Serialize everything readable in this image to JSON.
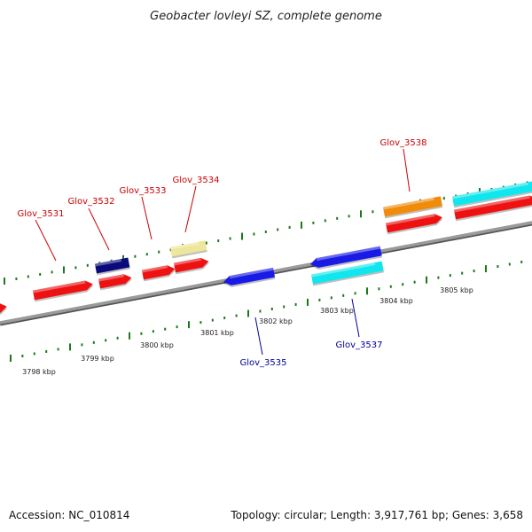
{
  "title": "Geobacter lovleyi SZ, complete genome",
  "footer": {
    "accession": "Accession: NC_010814",
    "summary": "Topology: circular; Length: 3,917,761 bp; Genes: 3,658"
  },
  "scale_labels": [
    "3798 kbp",
    "3799 kbp",
    "3800 kbp",
    "3801 kbp",
    "3802 kbp",
    "3803 kbp",
    "3804 kbp",
    "3805 kbp"
  ],
  "gene_labels": [
    {
      "id": "glov-3531",
      "text": "Glov_3531",
      "color": "#cc0000"
    },
    {
      "id": "glov-3532",
      "text": "Glov_3532",
      "color": "#cc0000"
    },
    {
      "id": "glov-3533",
      "text": "Glov_3533",
      "color": "#cc0000"
    },
    {
      "id": "glov-3534",
      "text": "Glov_3534",
      "color": "#cc0000"
    },
    {
      "id": "glov-3538",
      "text": "Glov_3538",
      "color": "#cc0000"
    },
    {
      "id": "glov-3535",
      "text": "Glov_3535",
      "color": "#000099"
    },
    {
      "id": "glov-3537",
      "text": "Glov_3537",
      "color": "#000099"
    }
  ],
  "colors": {
    "backbone": "#8a8a8a",
    "tick": "#1a7a1a",
    "red": "#ee1111",
    "navy": "#0a0a7a",
    "khaki": "#eee69a",
    "blue": "#1a1ae6",
    "cyan": "#11e6ee",
    "orange": "#f08c0a"
  }
}
